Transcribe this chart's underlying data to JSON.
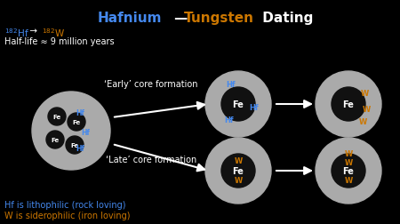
{
  "bg_color": "#000000",
  "gray_outer": "#aaaaaa",
  "core_color": "#111111",
  "white": "#ffffff",
  "blue": "#4488ee",
  "orange": "#cc7700",
  "halflife_text": "Half-life ≈ 9 million years",
  "early_label": "‘Early’ core formation",
  "late_label": "‘Late’ core formation",
  "bottom1": "Hf is lithophilic (rock loving)",
  "bottom2": "W is siderophilic (iron loving)"
}
